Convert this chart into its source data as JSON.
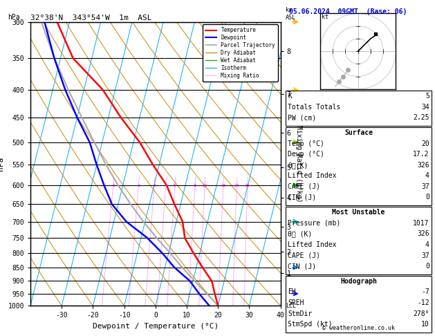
{
  "title_left": "32°38'N  343°54'W  1m  ASL",
  "title_right": "05.06.2024  09GMT  (Base: 06)",
  "xlabel": "Dewpoint / Temperature (°C)",
  "ylabel_left": "hPa",
  "pressure_levels": [
    300,
    350,
    400,
    450,
    500,
    550,
    600,
    650,
    700,
    750,
    800,
    850,
    900,
    950,
    1000
  ],
  "tmin": -40,
  "tmax": 40,
  "pmin": 300,
  "pmax": 1000,
  "skew_factor": 22.5,
  "bg_color": "#ffffff",
  "plot_bg": "#ffffff",
  "temp_profile_p": [
    1000,
    950,
    900,
    850,
    800,
    750,
    700,
    650,
    600,
    550,
    500,
    450,
    400,
    350,
    300
  ],
  "temp_profile_t": [
    20,
    18,
    16,
    12,
    8,
    4,
    2,
    -2,
    -6,
    -12,
    -18,
    -26,
    -34,
    -46,
    -54
  ],
  "dewp_profile_p": [
    1000,
    950,
    900,
    850,
    800,
    750,
    700,
    650,
    600,
    550,
    500,
    450,
    400,
    350,
    300
  ],
  "dewp_profile_t": [
    17.2,
    13,
    9,
    3,
    -2,
    -8,
    -16,
    -22,
    -26,
    -30,
    -34,
    -40,
    -46,
    -52,
    -58
  ],
  "parcel_p": [
    1000,
    950,
    900,
    850,
    800,
    750,
    700,
    650,
    600,
    550,
    500,
    450,
    400,
    350,
    300
  ],
  "parcel_t": [
    20,
    15.5,
    10.5,
    5.5,
    0.5,
    -5,
    -10.5,
    -16,
    -21.5,
    -27,
    -32.5,
    -38.5,
    -45,
    -52,
    -59
  ],
  "temp_color": "#ff0000",
  "dewp_color": "#0000ff",
  "parcel_color": "#aaaaaa",
  "dry_adiabat_color": "#cc8800",
  "wet_adiabat_color": "#00aa00",
  "isotherm_color": "#00aaff",
  "mixing_ratio_color": "#ff00ff",
  "grid_color": "#000000",
  "mixing_ratios": [
    1,
    2,
    3,
    4,
    5,
    8,
    10,
    15,
    20,
    25
  ],
  "km_ticks": [
    1,
    2,
    3,
    4,
    5,
    6,
    7,
    8
  ],
  "km_pressures": [
    870,
    795,
    715,
    632,
    556,
    480,
    408,
    340
  ],
  "wind_barb_p": [
    950,
    850,
    700,
    600,
    500,
    400,
    300
  ],
  "wind_barb_colors": [
    "#0000ff",
    "#0088ff",
    "#00aaaa",
    "#00cc00",
    "#88cc00",
    "#ffcc00",
    "#ffaa00"
  ],
  "stats": {
    "K": "5",
    "Totals_Totals": "34",
    "PW_cm": "2.25",
    "Surface_Temp": "20",
    "Surface_Dewp": "17.2",
    "Surface_ThetaE": "326",
    "Surface_LI": "4",
    "Surface_CAPE": "37",
    "Surface_CIN": "0",
    "MU_Pressure": "1017",
    "MU_ThetaE": "326",
    "MU_LI": "4",
    "MU_CAPE": "37",
    "MU_CIN": "0",
    "Hodo_EH": "-7",
    "Hodo_SREH": "-12",
    "Hodo_StmDir": "278°",
    "Hodo_StmSpd": "10"
  }
}
